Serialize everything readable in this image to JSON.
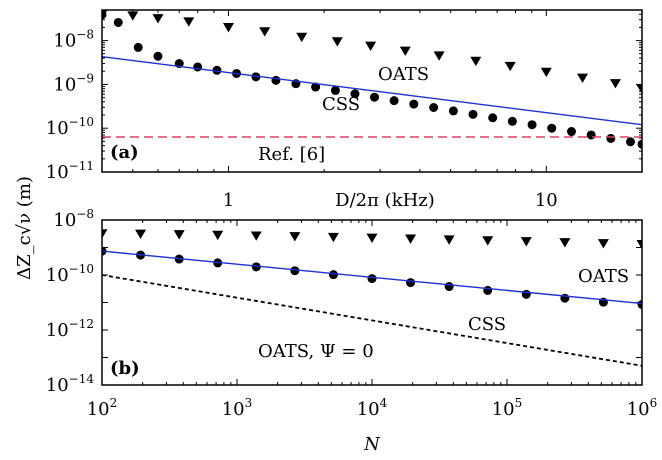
{
  "ylabel": "ΔZ_c√ν (m)",
  "chart_data": [
    {
      "type": "scatter",
      "panel_label": "(a)",
      "xlabel": "D/2π (kHz)",
      "xscale": "log",
      "yscale": "log",
      "xlim": [
        0.4,
        20
      ],
      "ylim": [
        1e-11,
        5e-08
      ],
      "x_ticks": [
        {
          "value": 1,
          "label": "1"
        },
        {
          "value": 10,
          "label": "10"
        }
      ],
      "y_ticks": [
        {
          "value": 1e-08,
          "mantissa": "10",
          "exp": "−8"
        },
        {
          "value": 1e-09,
          "mantissa": "10",
          "exp": "−9"
        },
        {
          "value": 1e-10,
          "mantissa": "10",
          "exp": "−10"
        },
        {
          "value": 1e-11,
          "mantissa": "10",
          "exp": "−11"
        }
      ],
      "series": [
        {
          "name": "OATS",
          "marker": "triangle-down",
          "color": "#000000",
          "x": [
            0.4,
            0.5,
            0.6,
            0.75,
            1.0,
            1.3,
            1.7,
            2.2,
            2.8,
            3.6,
            4.6,
            6.0,
            7.7,
            10,
            13,
            16.5,
            20
          ],
          "y": [
            4e-08,
            3.7e-08,
            3.2e-08,
            2.7e-08,
            2e-08,
            1.6e-08,
            1.2e-08,
            9.5e-09,
            7.5e-09,
            5.8e-09,
            4.5e-09,
            3.4e-09,
            2.6e-09,
            1.9e-09,
            1.4e-09,
            1.05e-09,
            7.8e-10
          ]
        },
        {
          "name": "CSS",
          "marker": "circle",
          "color": "#000000",
          "x": [
            0.4,
            0.45,
            0.52,
            0.6,
            0.7,
            0.8,
            0.92,
            1.06,
            1.22,
            1.41,
            1.63,
            1.88,
            2.17,
            2.5,
            2.88,
            3.32,
            3.83,
            4.42,
            5.1,
            5.88,
            6.78,
            7.82,
            9.02,
            10.4,
            12.0,
            13.84,
            15.96,
            18.4,
            20
          ],
          "y": [
            3.9e-08,
            2.6e-08,
            7e-09,
            4.4e-09,
            3e-09,
            2.5e-09,
            2.1e-09,
            1.78e-09,
            1.49e-09,
            1.24e-09,
            1.04e-09,
            8.7e-10,
            7.3e-10,
            6.1e-10,
            5.1e-10,
            4.25e-10,
            3.55e-10,
            2.97e-10,
            2.48e-10,
            2.07e-10,
            1.73e-10,
            1.44e-10,
            1.2e-10,
            1e-10,
            8.4e-11,
            7e-11,
            5.85e-11,
            4.9e-11,
            4.3e-11
          ]
        },
        {
          "name": "",
          "line": "solid",
          "color": "#1f30d2",
          "x": [
            0.4,
            20
          ],
          "y": [
            4.3e-09,
            1.2e-10
          ]
        },
        {
          "name": "Ref. [6]",
          "line": "dashed",
          "color": "#d94060",
          "x": [
            0.4,
            20
          ],
          "y": [
            6.3e-11,
            6.3e-11
          ]
        }
      ],
      "annotations": [
        "OATS",
        "CSS",
        "Ref. [6]"
      ]
    },
    {
      "type": "scatter",
      "panel_label": "(b)",
      "xlabel": "N",
      "xscale": "log",
      "yscale": "log",
      "xlim": [
        100,
        1000000
      ],
      "ylim": [
        1e-14,
        1e-08
      ],
      "x_ticks": [
        {
          "value": 100,
          "mantissa": "10",
          "exp": "2"
        },
        {
          "value": 1000,
          "mantissa": "10",
          "exp": "3"
        },
        {
          "value": 10000,
          "mantissa": "10",
          "exp": "4"
        },
        {
          "value": 100000,
          "mantissa": "10",
          "exp": "5"
        },
        {
          "value": 1000000,
          "mantissa": "10",
          "exp": "6"
        }
      ],
      "y_ticks": [
        {
          "value": 1e-08,
          "mantissa": "10",
          "exp": "−8"
        },
        {
          "value": 1e-10,
          "mantissa": "10",
          "exp": "−10"
        },
        {
          "value": 1e-12,
          "mantissa": "10",
          "exp": "−12"
        },
        {
          "value": 1e-14,
          "mantissa": "10",
          "exp": "−14"
        }
      ],
      "series": [
        {
          "name": "OATS",
          "marker": "triangle-down",
          "color": "#000000",
          "x": [
            100,
            193,
            373,
            720,
            1389,
            2683,
            5179,
            10000,
            19307,
            37276,
            71969,
            138950,
            268270,
            517950,
            1000000
          ],
          "y": [
            3.2e-09,
            3.1e-09,
            2.95e-09,
            2.8e-09,
            2.65e-09,
            2.5e-09,
            2.35e-09,
            2.2e-09,
            2.05e-09,
            1.9e-09,
            1.78e-09,
            1.65e-09,
            1.52e-09,
            1.4e-09,
            1.3e-09
          ]
        },
        {
          "name": "CSS",
          "marker": "circle",
          "color": "#000000",
          "x": [
            100,
            193,
            373,
            720,
            1389,
            2683,
            5179,
            10000,
            19307,
            37276,
            71969,
            138950,
            268270,
            517950,
            1000000
          ],
          "y": [
            7.4e-10,
            5.3e-10,
            3.8e-10,
            2.75e-10,
            1.98e-10,
            1.43e-10,
            1.03e-10,
            7.4e-11,
            5.3e-11,
            3.8e-11,
            2.75e-11,
            1.98e-11,
            1.43e-11,
            1.03e-11,
            8.5e-12
          ]
        },
        {
          "name": "",
          "line": "solid",
          "color": "#1f30d2",
          "x": [
            100,
            1000000
          ],
          "y": [
            7.4e-10,
            9.2e-12
          ]
        },
        {
          "name": "OATS, Ψ = 0",
          "line": "dotted",
          "color": "#000000",
          "x": [
            100,
            1000000
          ],
          "y": [
            1e-10,
            5e-14
          ]
        }
      ],
      "annotations": [
        "OATS",
        "CSS",
        "OATS, Ψ = 0"
      ]
    }
  ]
}
